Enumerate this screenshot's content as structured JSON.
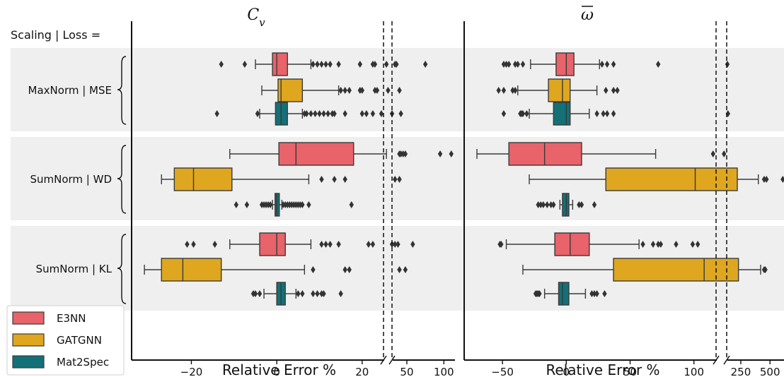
{
  "chart_data": {
    "type": "boxplot",
    "row_header": "Scaling | Loss =",
    "groups": [
      "MaxNorm | MSE",
      "SumNorm | WD",
      "SumNorm | KL"
    ],
    "xlabel": "Relative Error %",
    "legend": {
      "placement": "bottom-left",
      "entries": [
        {
          "name": "E3NN",
          "color": "#e8636a"
        },
        {
          "name": "GATGNN",
          "color": "#dfa71f"
        },
        {
          "name": "Mat2Spec",
          "color": "#137077"
        }
      ]
    },
    "panels": [
      {
        "title": "C",
        "title_sub": "v",
        "broken_axis": true,
        "main_ticks": [
          -20,
          0,
          20
        ],
        "main_tick_labels": [
          "−20",
          "0",
          "20"
        ],
        "main_range": [
          -34,
          25.5
        ],
        "inset_ticks": [
          50,
          100
        ],
        "inset_tick_labels": [
          "50",
          "100"
        ],
        "inset_range": [
          29,
          115
        ],
        "boxes": [
          {
            "group": 0,
            "model": "E3NN",
            "whisker_low": -5,
            "q1": -1,
            "median": 0,
            "q3": 2.5,
            "whisker_high": 8,
            "outliers": [
              -13,
              -7.5,
              8.5,
              9.5,
              10.5,
              11.5,
              12.5,
              14.5,
              19.5,
              22.5,
              23,
              26,
              34,
              36,
              75
            ]
          },
          {
            "group": 0,
            "model": "GATGNN",
            "whisker_low": -3.5,
            "q1": 0.3,
            "median": 1,
            "q3": 6,
            "whisker_high": 14.5,
            "outliers": [
              15,
              16,
              17,
              19.5,
              20,
              23,
              23.5,
              27,
              40
            ]
          },
          {
            "group": 0,
            "model": "Mat2Spec",
            "whisker_low": -4,
            "q1": -0.3,
            "median": 1,
            "q3": 2.5,
            "whisker_high": 6,
            "outliers": [
              -14,
              -4.5,
              6.5,
              7,
              8,
              9,
              10,
              11,
              12,
              13,
              13.5,
              16,
              20,
              21,
              22.5,
              24.5,
              30,
              42
            ]
          },
          {
            "group": 1,
            "model": "E3NN",
            "whisker_low": -11,
            "q1": 0.5,
            "median": 4.5,
            "q3": 18,
            "whisker_high": 26,
            "outliers": [
              40,
              42,
              45,
              48,
              95,
              110
            ]
          },
          {
            "group": 1,
            "model": "GATGNN",
            "whisker_low": -27,
            "q1": -24,
            "median": -19.5,
            "q3": -10.5,
            "whisker_high": 7.5,
            "outliers": [
              10.5,
              13.5,
              16,
              34,
              40
            ]
          },
          {
            "group": 1,
            "model": "Mat2Spec",
            "whisker_low": -1,
            "q1": -0.4,
            "median": 0,
            "q3": 0.6,
            "whisker_high": 1.2,
            "outliers": [
              -9.5,
              -7,
              -3.5,
              -3,
              -2.5,
              -2,
              -1.5,
              1.5,
              2,
              2.5,
              3,
              3.5,
              4,
              4.5,
              5,
              5.5,
              6,
              7.5,
              17.5
            ]
          },
          {
            "group": 2,
            "model": "E3NN",
            "whisker_low": -11,
            "q1": -4,
            "median": 0,
            "q3": 2,
            "whisker_high": 8,
            "outliers": [
              -21,
              -19.5,
              -14.5,
              10.5,
              11.5,
              12.5,
              14.5,
              21.5,
              22.5,
              30,
              34,
              38,
              58
            ]
          },
          {
            "group": 2,
            "model": "GATGNN",
            "whisker_low": -31,
            "q1": -27,
            "median": -22,
            "q3": -13,
            "whisker_high": 6.5,
            "outliers": [
              8.5,
              16,
              17,
              40,
              48
            ]
          },
          {
            "group": 2,
            "model": "Mat2Spec",
            "whisker_low": -3,
            "q1": 0,
            "median": 1,
            "q3": 2,
            "whisker_high": 4.5,
            "outliers": [
              -5.5,
              -5,
              -4,
              5,
              6,
              8.5,
              9.5,
              10.5,
              11,
              15
            ]
          }
        ]
      },
      {
        "title": "ω",
        "title_overline": true,
        "broken_axis": true,
        "main_ticks": [
          -50,
          0,
          50,
          100
        ],
        "main_tick_labels": [
          "−50",
          "0",
          "50",
          "100"
        ],
        "main_range": [
          -80,
          119
        ],
        "inset_ticks": [
          250,
          500
        ],
        "inset_tick_labels": [
          "250",
          "500"
        ],
        "inset_range": [
          123,
          620
        ],
        "boxes": [
          {
            "group": 0,
            "model": "E3NN",
            "whisker_low": -28,
            "q1": -8,
            "median": 0,
            "q3": 6,
            "whisker_high": 26,
            "outliers": [
              -49,
              -47,
              -45,
              -40,
              -38,
              -34,
              28,
              32,
              37,
              72,
              135
            ]
          },
          {
            "group": 0,
            "model": "GATGNN",
            "whisker_low": -38,
            "q1": -14,
            "median": -3,
            "q3": 3,
            "whisker_high": 24,
            "outliers": [
              -53,
              -49,
              -42,
              -40,
              31,
              37,
              40
            ]
          },
          {
            "group": 0,
            "model": "Mat2Spec",
            "whisker_low": -29,
            "q1": -10,
            "median": 0,
            "q3": 3,
            "whisker_high": 18,
            "outliers": [
              -49,
              -36,
              -35,
              -34,
              -31,
              24,
              29,
              32,
              37,
              140
            ]
          },
          {
            "group": 1,
            "model": "E3NN",
            "whisker_low": -70,
            "q1": -45,
            "median": -17,
            "q3": 12,
            "whisker_high": 70,
            "outliers": [
              115,
              122
            ]
          },
          {
            "group": 1,
            "model": "GATGNN",
            "whisker_low": -29,
            "q1": 31,
            "median": 101,
            "q3": 220,
            "whisker_high": 400,
            "outliers": [
              450,
              470,
              610
            ]
          },
          {
            "group": 1,
            "model": "Mat2Spec",
            "whisker_low": -5,
            "q1": -3,
            "median": 0,
            "q3": 2,
            "whisker_high": 5,
            "outliers": [
              -22,
              -20,
              -18,
              -15,
              -12,
              -10,
              10,
              12,
              22
            ]
          },
          {
            "group": 2,
            "model": "E3NN",
            "whisker_low": -47,
            "q1": -9,
            "median": 3,
            "q3": 18,
            "whisker_high": 57,
            "outliers": [
              -52,
              -51,
              60,
              68,
              72,
              74,
              86,
              99,
              103
            ]
          },
          {
            "group": 2,
            "model": "GATGNN",
            "whisker_low": -34,
            "q1": 37,
            "median": 108,
            "q3": 230,
            "whisker_high": 420,
            "outliers": [
              450,
              460,
              615
            ]
          },
          {
            "group": 2,
            "model": "Mat2Spec",
            "whisker_low": -17,
            "q1": -6,
            "median": -3,
            "q3": 2,
            "whisker_high": 15,
            "outliers": [
              -24,
              -23,
              -22,
              -21,
              20,
              22,
              24,
              30
            ]
          }
        ]
      }
    ]
  }
}
